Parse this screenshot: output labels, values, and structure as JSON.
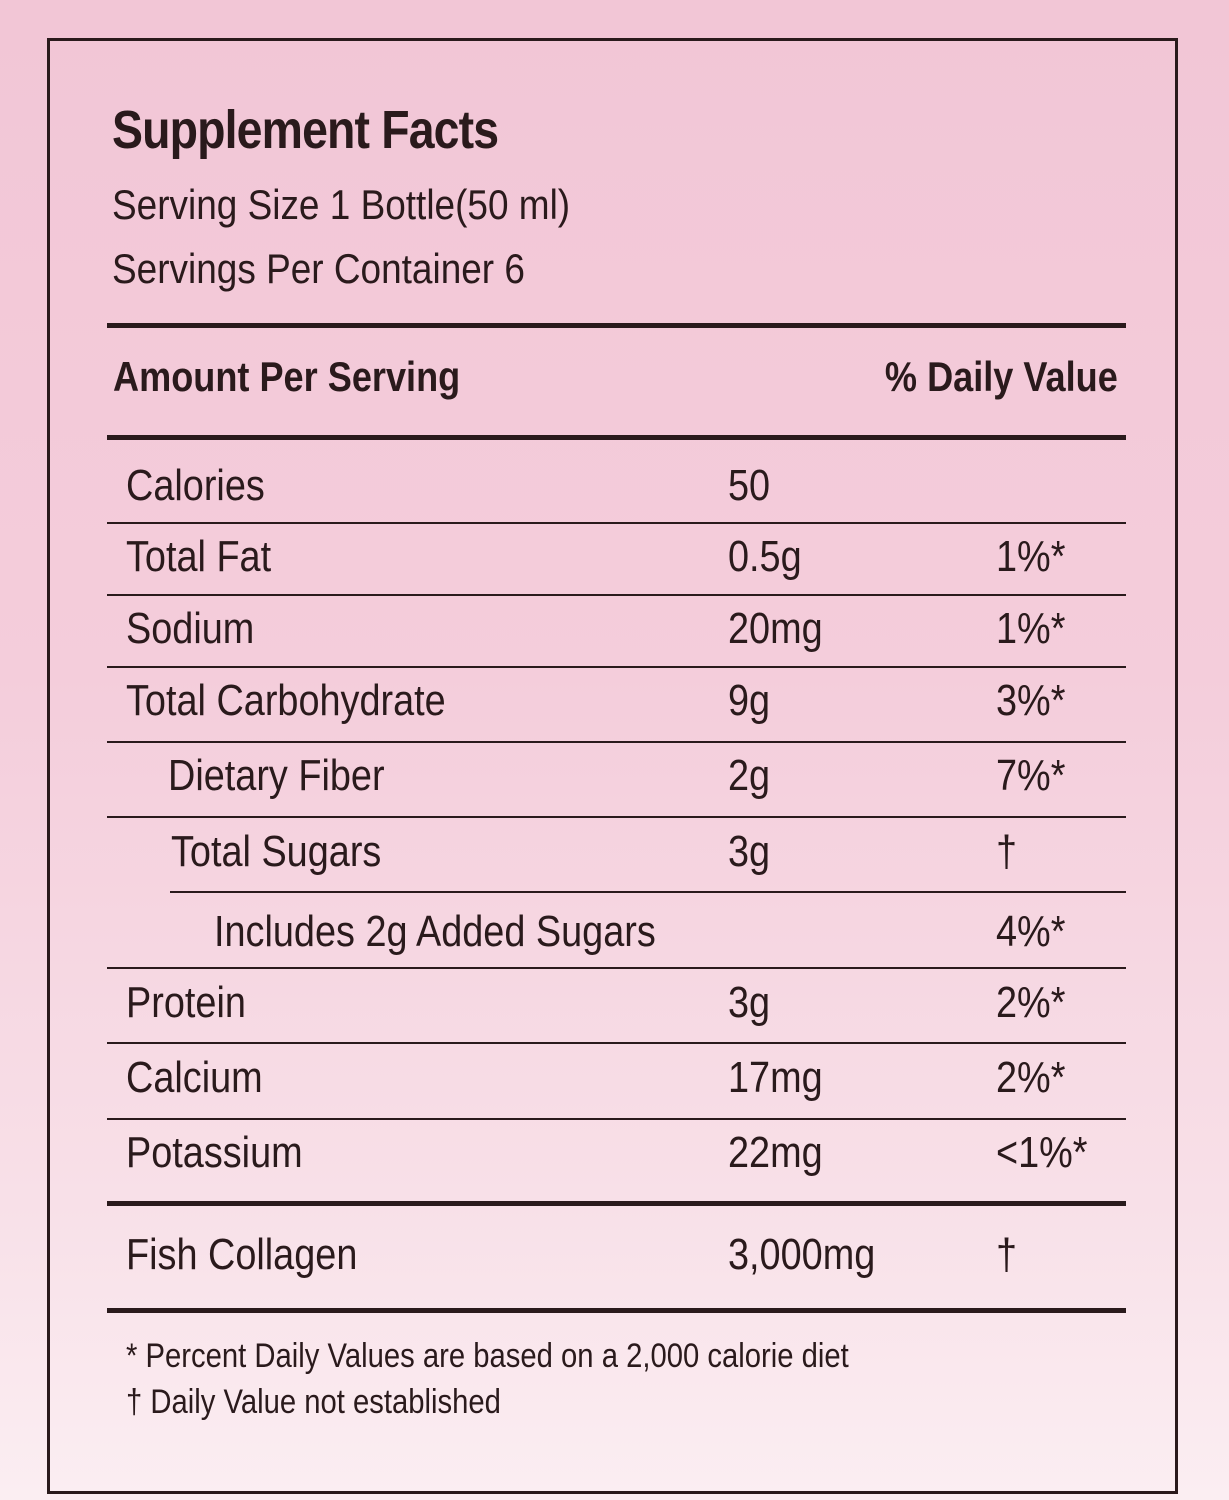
{
  "label": {
    "title": "Supplement Facts",
    "serving_size": "Serving Size 1 Bottle(50 ml)",
    "servings_per_container": "Servings Per Container 6",
    "header_amount": "Amount Per Serving",
    "header_daily_value": "% Daily Value",
    "rows": [
      {
        "name": "Calories",
        "amount": "50",
        "dv": ""
      },
      {
        "name": "Total Fat",
        "amount": "0.5g",
        "dv": "1%*"
      },
      {
        "name": "Sodium",
        "amount": "20mg",
        "dv": "1%*"
      },
      {
        "name": "Total Carbohydrate",
        "amount": "9g",
        "dv": "3%*"
      },
      {
        "name": "Dietary Fiber",
        "amount": "2g",
        "dv": "7%*"
      },
      {
        "name": "Total Sugars",
        "amount": "3g",
        "dv": "†"
      },
      {
        "name": "Includes 2g Added Sugars",
        "amount": "",
        "dv": "4%*"
      },
      {
        "name": "Protein",
        "amount": "3g",
        "dv": "2%*"
      },
      {
        "name": "Calcium",
        "amount": "17mg",
        "dv": "2%*"
      },
      {
        "name": "Potassium",
        "amount": "22mg",
        "dv": "<1%*"
      },
      {
        "name": "Fish Collagen",
        "amount": "3,000mg",
        "dv": "†"
      }
    ],
    "footnotes": [
      "* Percent Daily Values are based on a 2,000 calorie diet",
      "† Daily Value not established"
    ]
  },
  "colors": {
    "text": "#2a1a1c",
    "background_top": "#f2c6d6",
    "background_bottom": "#fbeef2"
  }
}
